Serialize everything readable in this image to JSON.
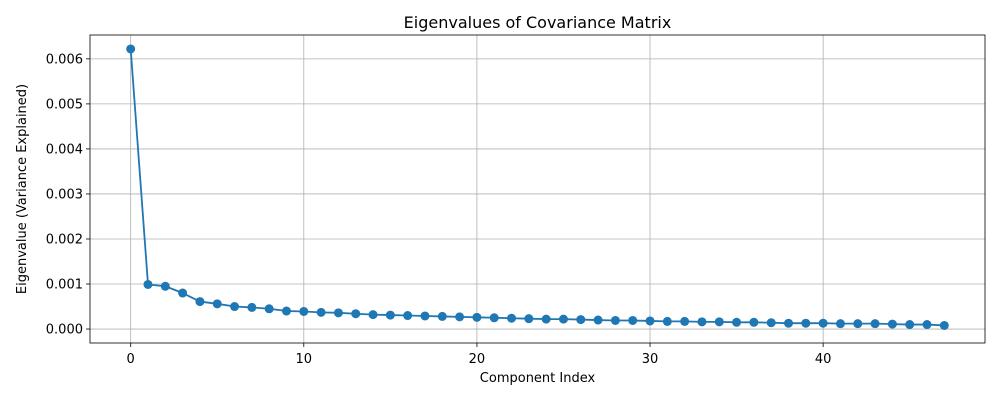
{
  "chart_data": {
    "type": "line",
    "title": "Eigenvalues of Covariance Matrix",
    "xlabel": "Component Index",
    "ylabel": "Eigenvalue (Variance Explained)",
    "xlim": [
      -2.35,
      49.35
    ],
    "ylim": [
      -0.00031,
      0.00653
    ],
    "xticks": [
      0,
      10,
      20,
      30,
      40
    ],
    "xtick_labels": [
      "0",
      "10",
      "20",
      "30",
      "40"
    ],
    "yticks": [
      0.0,
      0.001,
      0.002,
      0.003,
      0.004,
      0.005,
      0.006
    ],
    "ytick_labels": [
      "0.000",
      "0.001",
      "0.002",
      "0.003",
      "0.004",
      "0.005",
      "0.006"
    ],
    "grid": true,
    "marker": "circle",
    "color": "#1f77b4",
    "series": [
      {
        "x": [
          0,
          1,
          2,
          3,
          4,
          5,
          6,
          7,
          8,
          9,
          10,
          11,
          12,
          13,
          14,
          15,
          16,
          17,
          18,
          19,
          20,
          21,
          22,
          23,
          24,
          25,
          26,
          27,
          28,
          29,
          30,
          31,
          32,
          33,
          34,
          35,
          36,
          37,
          38,
          39,
          40,
          41,
          42,
          43,
          44,
          45,
          46,
          47
        ],
        "values": [
          0.00622,
          0.00099,
          0.00095,
          0.0008,
          0.00061,
          0.00056,
          0.0005,
          0.00048,
          0.00045,
          0.0004,
          0.00039,
          0.00037,
          0.00036,
          0.00034,
          0.00032,
          0.00031,
          0.0003,
          0.00029,
          0.00028,
          0.00027,
          0.00026,
          0.00025,
          0.00024,
          0.00023,
          0.00022,
          0.00022,
          0.00021,
          0.0002,
          0.00019,
          0.00019,
          0.00018,
          0.00017,
          0.00017,
          0.00016,
          0.00016,
          0.00015,
          0.00015,
          0.00014,
          0.00013,
          0.00013,
          0.00013,
          0.00012,
          0.00012,
          0.00012,
          0.00011,
          0.0001,
          0.0001,
          8e-05
        ]
      }
    ]
  }
}
